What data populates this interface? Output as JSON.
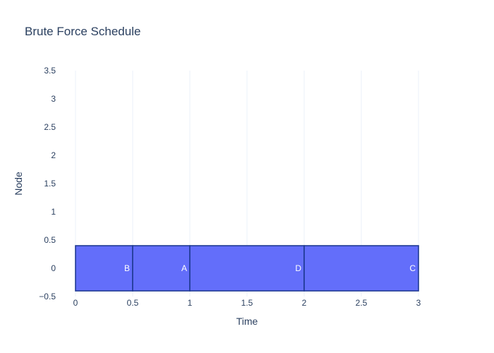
{
  "chart_data": {
    "type": "bar",
    "orientation": "horizontal",
    "title": "Brute Force Schedule",
    "xlabel": "Time",
    "ylabel": "Node",
    "xlim": [
      0,
      3
    ],
    "ylim": [
      -0.5,
      3.5
    ],
    "x_ticks": [
      "0",
      "0.5",
      "1",
      "1.5",
      "2",
      "2.5",
      "3"
    ],
    "y_ticks": [
      "3.5",
      "3",
      "2.5",
      "2",
      "1.5",
      "1",
      "0.5",
      "0",
      "−0.5"
    ],
    "grid": true,
    "bar_color": "#636efa",
    "bar_outline": "#1f3a93",
    "bars": [
      {
        "label": "B",
        "node": 0,
        "start": 0,
        "end": 0.5
      },
      {
        "label": "A",
        "node": 0,
        "start": 0.5,
        "end": 1
      },
      {
        "label": "D",
        "node": 0,
        "start": 1,
        "end": 2
      },
      {
        "label": "C",
        "node": 0,
        "start": 2,
        "end": 3
      }
    ]
  }
}
